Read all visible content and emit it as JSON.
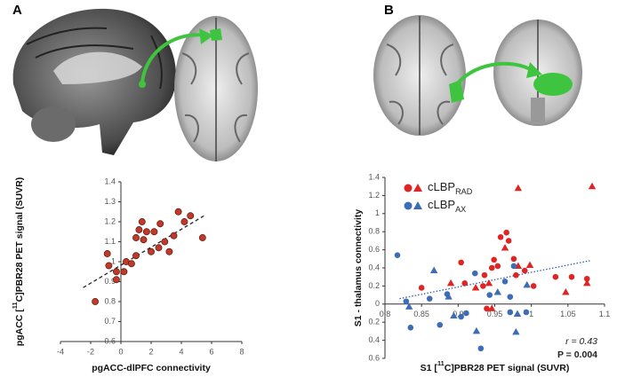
{
  "chart_data": [
    {
      "type": "scatter",
      "panel": "A",
      "xlabel": [
        "pgACC-dlPFC connectivity"
      ],
      "ylabel": [
        "pgACC [",
        "11",
        "C]PBR28 PET signal (SUVR)"
      ],
      "xlim": [
        -4,
        8
      ],
      "xticks": [
        -4,
        -2,
        0,
        2,
        4,
        6,
        8
      ],
      "ylim": [
        0.6,
        1.4
      ],
      "yticks": [
        0.6,
        0.7,
        0.8,
        0.9,
        1,
        1.1,
        1.2,
        1.3,
        1.4
      ],
      "series": [
        {
          "color": "#c0392b",
          "x": [
            -1.7,
            -0.9,
            -0.8,
            -0.3,
            -0.3,
            0.2,
            0.35,
            0.7,
            1.0,
            1.0,
            1.2,
            1.4,
            1.5,
            1.7,
            2.0,
            2.2,
            2.6,
            2.5,
            2.9,
            3.2,
            3.5,
            3.8,
            4.2,
            4.6,
            5.4
          ],
          "values": [
            0.8,
            1.04,
            0.98,
            0.91,
            0.95,
            0.95,
            1.0,
            0.99,
            1.03,
            1.12,
            1.16,
            1.2,
            1.11,
            1.15,
            1.05,
            1.15,
            1.19,
            1.07,
            1.1,
            1.05,
            1.13,
            1.25,
            1.2,
            1.23,
            1.12
          ]
        }
      ],
      "trendline": {
        "x": [
          -2.5,
          5.5
        ],
        "y": [
          0.87,
          1.23
        ],
        "color": "#222",
        "style": "dashed"
      }
    },
    {
      "type": "scatter",
      "panel": "B",
      "xlabel": [
        "S1 [",
        "11",
        "C]PBR28 PET signal (SUVR)"
      ],
      "ylabel": [
        "S1 - thalamus connectivity"
      ],
      "xlim": [
        0.8,
        1.1
      ],
      "xticks": [
        0.8,
        0.85,
        0.9,
        0.95,
        1,
        1.05,
        1.1
      ],
      "ylim": [
        -0.6,
        1.4
      ],
      "yticks": [
        {
          "value": -0.6,
          "label": "0.6"
        },
        {
          "value": -0.4,
          "label": "0.4"
        },
        {
          "value": -0.2,
          "label": "0.2"
        },
        0,
        0.2,
        0.4,
        0.6,
        0.8,
        1,
        1.2,
        1.4
      ],
      "series": [
        {
          "name": [
            "cLBP",
            "RAD"
          ],
          "color": "#e02424",
          "x": [
            1.083,
            0.982,
            0.904,
            0.936,
            0.946,
            0.949,
            0.958,
            0.964,
            0.969,
            0.976,
            0.991,
            0.998,
            0.942,
            0.954,
            0.89,
            0.909,
            0.924,
            0.934,
            0.85,
            1.003,
            1.033,
            1.055,
            1.047,
            1.076,
            1.076,
            0.939,
            0.946,
            0.979,
            0.966,
            0.982
          ],
          "values": [
            1.3,
            1.28,
            0.46,
            0.32,
            0.4,
            0.49,
            0.74,
            0.62,
            0.7,
            0.5,
            0.37,
            0.43,
            0.23,
            0.42,
            0.23,
            0.23,
            0.18,
            0.2,
            0.18,
            0.2,
            0.3,
            0.3,
            0.13,
            0.23,
            0.28,
            -0.05,
            -0.05,
            0.32,
            0.79,
            0.42
          ],
          "shapes": [
            "triangle",
            "triangle",
            "circle",
            "circle",
            "circle",
            "circle",
            "circle",
            "triangle",
            "circle",
            "circle",
            "circle",
            "triangle",
            "triangle",
            "circle",
            "triangle",
            "circle",
            "triangle",
            "circle",
            "circle",
            "circle",
            "circle",
            "circle",
            "triangle",
            "triangle",
            "circle",
            "circle",
            "triangle",
            "circle",
            "circle",
            "triangle"
          ]
        },
        {
          "name": [
            "cLBP",
            "AX"
          ],
          "color": "#3d6db5",
          "x": [
            0.817,
            0.867,
            0.829,
            0.833,
            0.835,
            0.861,
            0.885,
            0.894,
            0.904,
            0.911,
            0.923,
            0.875,
            0.925,
            0.931,
            0.943,
            0.954,
            0.971,
            0.971,
            0.976,
            0.979,
            0.981,
            0.993,
            0.994,
            0.887,
            0.964
          ],
          "values": [
            0.54,
            0.37,
            0.03,
            -0.03,
            -0.26,
            0.06,
            0.11,
            -0.13,
            -0.14,
            -0.1,
            0.34,
            -0.23,
            -0.3,
            -0.49,
            0.1,
            0.13,
            0.08,
            -0.09,
            0.42,
            -0.31,
            -0.11,
            -0.09,
            0.21,
            0.08,
            0.25
          ],
          "shapes": [
            "circle",
            "triangle",
            "circle",
            "triangle",
            "circle",
            "circle",
            "circle",
            "triangle",
            "circle",
            "circle",
            "circle",
            "circle",
            "triangle",
            "circle",
            "circle",
            "triangle",
            "circle",
            "circle",
            "circle",
            "triangle",
            "triangle",
            "circle",
            "triangle",
            "triangle",
            "circle"
          ]
        }
      ],
      "trendline": {
        "x": [
          0.82,
          1.08
        ],
        "y": [
          0.06,
          0.48
        ],
        "color": "#2f5fae",
        "style": "dotted"
      },
      "annotations": [
        "r = 0.43",
        "P = 0.004"
      ]
    }
  ]
}
